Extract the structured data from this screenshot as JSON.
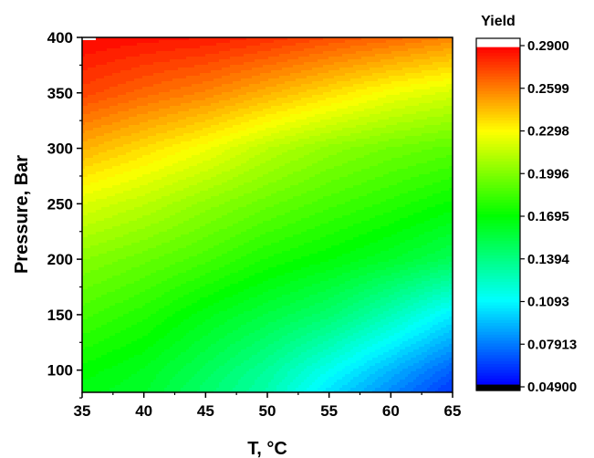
{
  "chart_data": {
    "type": "heatmap",
    "style": "filled contour",
    "xlabel": "T, °C",
    "ylabel": "Pressure, Bar",
    "colorbar_title": "Yield",
    "xlim": [
      35,
      65
    ],
    "ylim": [
      80,
      400
    ],
    "x_ticks": [
      35,
      40,
      45,
      50,
      55,
      60,
      65
    ],
    "y_ticks": [
      100,
      150,
      200,
      250,
      300,
      350,
      400
    ],
    "colorbar_range": [
      0.049,
      0.29
    ],
    "colorbar_ticks": [
      "0.2900",
      "0.2599",
      "0.2298",
      "0.1996",
      "0.1695",
      "0.1394",
      "0.1093",
      "0.07913",
      "0.04900"
    ],
    "colormap": [
      "#000000",
      "#0000ff",
      "#00ffff",
      "#00ff00",
      "#ffff00",
      "#ff0000",
      "#ffffff"
    ],
    "grid_x": [
      35,
      40,
      45,
      50,
      55,
      60,
      65
    ],
    "grid_y": [
      80,
      100,
      150,
      200,
      250,
      300,
      350,
      400
    ],
    "yield_grid": [
      [
        0.165,
        0.16,
        0.145,
        0.13,
        0.105,
        0.085,
        0.065
      ],
      [
        0.17,
        0.163,
        0.15,
        0.135,
        0.115,
        0.095,
        0.075
      ],
      [
        0.185,
        0.177,
        0.165,
        0.155,
        0.145,
        0.128,
        0.108
      ],
      [
        0.2,
        0.193,
        0.185,
        0.175,
        0.168,
        0.16,
        0.15
      ],
      [
        0.22,
        0.212,
        0.202,
        0.193,
        0.185,
        0.178,
        0.17
      ],
      [
        0.245,
        0.235,
        0.225,
        0.212,
        0.202,
        0.195,
        0.19
      ],
      [
        0.27,
        0.262,
        0.255,
        0.245,
        0.235,
        0.225,
        0.218
      ],
      [
        0.285,
        0.282,
        0.28,
        0.275,
        0.268,
        0.262,
        0.255
      ]
    ]
  }
}
